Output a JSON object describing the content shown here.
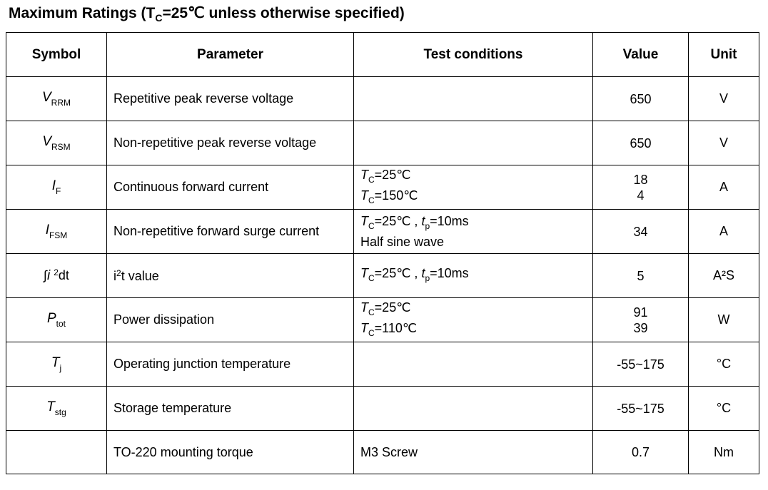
{
  "title": {
    "prefix": "Maximum Ratings (T",
    "sub": "C",
    "suffix": "=25℃ unless otherwise specified)"
  },
  "headers": {
    "symbol": "Symbol",
    "parameter": "Parameter",
    "conditions": "Test conditions",
    "value": "Value",
    "unit": "Unit"
  },
  "rows": [
    {
      "symbol": {
        "main": "V",
        "sub": "RRM"
      },
      "parameter": "Repetitive peak reverse voltage",
      "values": [
        "650"
      ],
      "unit": "V"
    },
    {
      "symbol": {
        "main": "V",
        "sub": "RSM"
      },
      "parameter": "Non-repetitive peak reverse voltage",
      "values": [
        "650"
      ],
      "unit": "V"
    },
    {
      "symbol": {
        "main": "I",
        "sub": "F"
      },
      "parameter": "Continuous forward current",
      "conditions": [
        {
          "var": "T",
          "sub": "C",
          "rest": "=25℃"
        },
        {
          "var": "T",
          "sub": "C",
          "rest": "=150℃"
        }
      ],
      "values": [
        "18",
        "4"
      ],
      "unit": "A"
    },
    {
      "symbol": {
        "main": "I",
        "sub": "FSM"
      },
      "parameter": "Non-repetitive forward surge current",
      "conditions": [
        {
          "var": "T",
          "sub": "C",
          "rest": "=25℃ , ",
          "var2": "t",
          "sub2": "p",
          "rest2": "=10ms"
        },
        {
          "text": "Half sine wave"
        }
      ],
      "values": [
        "34"
      ],
      "unit": "A"
    },
    {
      "symbol": {
        "int": "∫",
        "main": "i",
        "sup": "2",
        "tail": "dt"
      },
      "parameter_pre": "i",
      "parameter_sup": "2",
      "parameter_post": "t value",
      "conditions": [
        {
          "var": "T",
          "sub": "C",
          "rest": "=25℃ , ",
          "var2": "t",
          "sub2": "p",
          "rest2": "=10ms"
        }
      ],
      "values": [
        "5"
      ],
      "unit": "A²S"
    },
    {
      "symbol": {
        "main": "P",
        "sub": "tot"
      },
      "parameter": "Power dissipation",
      "conditions": [
        {
          "var": "T",
          "sub": "C",
          "rest": "=25℃"
        },
        {
          "var": "T",
          "sub": "C",
          "rest": "=110℃"
        }
      ],
      "values": [
        "91",
        "39"
      ],
      "unit": "W"
    },
    {
      "symbol": {
        "main": "T",
        "sub": "j"
      },
      "parameter": "Operating junction temperature",
      "values": [
        "-55~175"
      ],
      "unit": "°C"
    },
    {
      "symbol": {
        "main": "T",
        "sub": "stg"
      },
      "parameter": "Storage temperature",
      "values": [
        "-55~175"
      ],
      "unit": "°C"
    },
    {
      "parameter": "TO-220 mounting torque",
      "conditions": [
        {
          "text": "M3 Screw"
        }
      ],
      "values": [
        "0.7"
      ],
      "unit": "Nm"
    }
  ]
}
